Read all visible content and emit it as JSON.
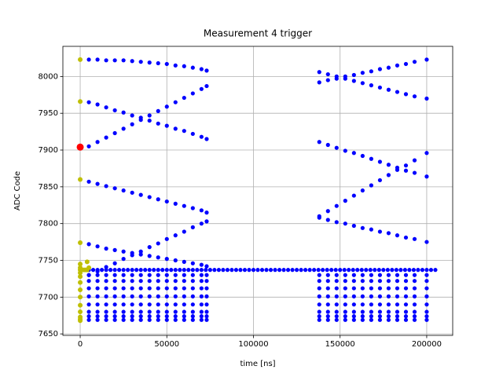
{
  "chart_data": {
    "type": "scatter",
    "title": "Measurement 4 trigger",
    "x_label": "time [ns]",
    "y_label": "ADC Code",
    "xlim": [
      -10000,
      215000
    ],
    "ylim": [
      7648,
      8041
    ],
    "xticks": [
      0,
      50000,
      100000,
      150000,
      200000
    ],
    "yticks": [
      7650,
      7700,
      7750,
      7800,
      7850,
      7900,
      7950,
      8000
    ],
    "grid": true,
    "x": [
      5000,
      10000,
      15000,
      20000,
      25000,
      30000,
      35000,
      40000,
      45000,
      50000,
      55000,
      60000,
      65000,
      70000,
      73000,
      138000,
      143000,
      148000,
      153000,
      158000,
      163000,
      168000,
      173000,
      178000,
      183000,
      188000,
      193000,
      200000
    ],
    "series": [
      {
        "color": "#0000ff",
        "values": [
          8023,
          8023,
          8022,
          8022,
          8022,
          8021,
          8020,
          8019,
          8018,
          8017,
          8015,
          8014,
          8012,
          8010,
          8008,
          null,
          null,
          null,
          null,
          null,
          null,
          null,
          null,
          null,
          null,
          null,
          null,
          null
        ]
      },
      {
        "color": "#0000ff",
        "values": [
          7965,
          7962,
          7958,
          7954,
          7951,
          7947,
          7944,
          7940,
          7936,
          7933,
          7929,
          7926,
          7922,
          7918,
          7915,
          null,
          null,
          null,
          null,
          null,
          null,
          null,
          null,
          null,
          null,
          null,
          null,
          null
        ]
      },
      {
        "color": "#0000ff",
        "values": [
          7905,
          7911,
          7917,
          7923,
          7929,
          7935,
          7941,
          7947,
          7953,
          7959,
          7965,
          7971,
          7977,
          7983,
          7987,
          null,
          null,
          null,
          null,
          null,
          null,
          null,
          null,
          null,
          null,
          null,
          null,
          null
        ]
      },
      {
        "color": "#0000ff",
        "values": [
          7857,
          7854,
          7851,
          7848,
          7845,
          7842,
          7839,
          7836,
          7833,
          7830,
          7827,
          7824,
          7821,
          7818,
          7815,
          null,
          null,
          null,
          null,
          null,
          null,
          null,
          null,
          null,
          null,
          null,
          null,
          null
        ]
      },
      {
        "color": "#0000ff",
        "values": [
          7772,
          7769,
          7766,
          7764,
          7762,
          7760,
          7758,
          7756,
          7754,
          7752,
          7750,
          7748,
          7746,
          7744,
          7742,
          null,
          null,
          null,
          null,
          null,
          null,
          null,
          null,
          null,
          null,
          null,
          null,
          null
        ]
      },
      {
        "color": "#0000ff",
        "values": [
          7730,
          7735,
          7741,
          7746,
          7752,
          7757,
          7762,
          7768,
          7773,
          7779,
          7784,
          7789,
          7795,
          7800,
          7803,
          null,
          null,
          null,
          null,
          null,
          null,
          null,
          null,
          null,
          null,
          null,
          null,
          null
        ]
      },
      {
        "color": "#0000ff",
        "values": [
          null,
          null,
          null,
          null,
          null,
          null,
          null,
          null,
          null,
          null,
          null,
          null,
          null,
          null,
          null,
          7992,
          7995,
          7997,
          8000,
          8002,
          8005,
          8007,
          8010,
          8012,
          8015,
          8017,
          8020,
          8023
        ]
      },
      {
        "color": "#0000ff",
        "values": [
          null,
          null,
          null,
          null,
          null,
          null,
          null,
          null,
          null,
          null,
          null,
          null,
          null,
          null,
          null,
          8006,
          8003,
          8000,
          7997,
          7994,
          7991,
          7988,
          7985,
          7982,
          7979,
          7976,
          7973,
          7970
        ]
      },
      {
        "color": "#0000ff",
        "values": [
          null,
          null,
          null,
          null,
          null,
          null,
          null,
          null,
          null,
          null,
          null,
          null,
          null,
          null,
          null,
          7911,
          7907,
          7903,
          7899,
          7896,
          7892,
          7888,
          7884,
          7880,
          7876,
          7872,
          7869,
          7864
        ]
      },
      {
        "color": "#0000ff",
        "values": [
          null,
          null,
          null,
          null,
          null,
          null,
          null,
          null,
          null,
          null,
          null,
          null,
          null,
          null,
          null,
          7810,
          7817,
          7824,
          7831,
          7838,
          7845,
          7852,
          7859,
          7866,
          7873,
          7879,
          7886,
          7896
        ]
      },
      {
        "color": "#0000ff",
        "values": [
          null,
          null,
          null,
          null,
          null,
          null,
          null,
          null,
          null,
          null,
          null,
          null,
          null,
          null,
          null,
          7808,
          7805,
          7802,
          7800,
          7797,
          7794,
          7792,
          7789,
          7787,
          7784,
          7781,
          7779,
          7775
        ]
      },
      {
        "color": "#0000ff",
        "values": [
          7730,
          7730,
          7730,
          7730,
          7730,
          7730,
          7730,
          7730,
          7730,
          7730,
          7730,
          7730,
          7730,
          7730,
          7730,
          7730,
          7730,
          7730,
          7730,
          7730,
          7730,
          7730,
          7730,
          7730,
          7730,
          7730,
          7730,
          7730
        ]
      },
      {
        "color": "#0000ff",
        "values": [
          7722,
          7722,
          7722,
          7722,
          7722,
          7722,
          7722,
          7722,
          7722,
          7722,
          7722,
          7722,
          7722,
          7722,
          7722,
          7722,
          7722,
          7722,
          7722,
          7722,
          7722,
          7722,
          7722,
          7722,
          7722,
          7722,
          7722,
          7722
        ]
      },
      {
        "color": "#0000ff",
        "values": [
          7712,
          7712,
          7712,
          7712,
          7712,
          7712,
          7712,
          7712,
          7712,
          7712,
          7712,
          7712,
          7712,
          7712,
          7712,
          7712,
          7712,
          7712,
          7712,
          7712,
          7712,
          7712,
          7712,
          7712,
          7712,
          7712,
          7712,
          7712
        ]
      },
      {
        "color": "#0000ff",
        "values": [
          7701,
          7701,
          7701,
          7701,
          7701,
          7701,
          7701,
          7701,
          7701,
          7701,
          7701,
          7701,
          7701,
          7701,
          7701,
          7701,
          7701,
          7701,
          7701,
          7701,
          7701,
          7701,
          7701,
          7701,
          7701,
          7701,
          7701,
          7701
        ]
      },
      {
        "color": "#0000ff",
        "values": [
          7690,
          7690,
          7690,
          7690,
          7690,
          7690,
          7690,
          7690,
          7690,
          7690,
          7690,
          7690,
          7690,
          7690,
          7690,
          7690,
          7690,
          7690,
          7690,
          7690,
          7690,
          7690,
          7690,
          7690,
          7690,
          7690,
          7690,
          7690
        ]
      },
      {
        "color": "#0000ff",
        "values": [
          7680,
          7680,
          7680,
          7680,
          7680,
          7680,
          7680,
          7680,
          7680,
          7680,
          7680,
          7680,
          7680,
          7680,
          7680,
          7680,
          7680,
          7680,
          7680,
          7680,
          7680,
          7680,
          7680,
          7680,
          7680,
          7680,
          7680,
          7680
        ]
      },
      {
        "color": "#0000ff",
        "values": [
          7674,
          7674,
          7674,
          7674,
          7674,
          7674,
          7674,
          7674,
          7674,
          7674,
          7674,
          7674,
          7674,
          7674,
          7674,
          7674,
          7674,
          7674,
          7674,
          7674,
          7674,
          7674,
          7674,
          7674,
          7674,
          7674,
          7674,
          7674
        ]
      },
      {
        "color": "#0000ff",
        "values": [
          7669,
          7669,
          7669,
          7669,
          7669,
          7669,
          7669,
          7669,
          7669,
          7669,
          7669,
          7669,
          7669,
          7669,
          7669,
          7669,
          7669,
          7669,
          7669,
          7669,
          7669,
          7669,
          7669,
          7669,
          7669,
          7669,
          7669,
          7669
        ]
      },
      {
        "color": "#0000ff",
        "x": [
          0,
          2500,
          5000,
          7500,
          10000,
          12500,
          15000,
          17500,
          20000,
          22500,
          25000,
          27500,
          30000,
          32500,
          35000,
          37500,
          40000,
          42500,
          45000,
          47500,
          50000,
          52500,
          55000,
          57500,
          60000,
          62500,
          65000,
          67500,
          70000,
          72500,
          75000,
          77500,
          80000,
          82500,
          85000,
          87500,
          90000,
          92500,
          95000,
          97500,
          100000,
          102500,
          105000,
          107500,
          110000,
          112500,
          115000,
          117500,
          120000,
          122500,
          125000,
          127500,
          130000,
          132500,
          135000,
          137500,
          140000,
          142500,
          145000,
          147500,
          150000,
          152500,
          155000,
          157500,
          160000,
          162500,
          165000,
          167500,
          170000,
          172500,
          175000,
          177500,
          180000,
          182500,
          185000,
          187500,
          190000,
          192500,
          195000,
          197500,
          200000,
          202500,
          205000
        ],
        "values": [
          7737,
          7737,
          7737,
          7737,
          7737,
          7737,
          7737,
          7737,
          7737,
          7737,
          7737,
          7737,
          7737,
          7737,
          7737,
          7737,
          7737,
          7737,
          7737,
          7737,
          7737,
          7737,
          7737,
          7737,
          7737,
          7737,
          7737,
          7737,
          7737,
          7737,
          7737,
          7737,
          7737,
          7737,
          7737,
          7737,
          7737,
          7737,
          7737,
          7737,
          7737,
          7737,
          7737,
          7737,
          7737,
          7737,
          7737,
          7737,
          7737,
          7737,
          7737,
          7737,
          7737,
          7737,
          7737,
          7737,
          7737,
          7737,
          7737,
          7737,
          7737,
          7737,
          7737,
          7737,
          7737,
          7737,
          7737,
          7737,
          7737,
          7737,
          7737,
          7737,
          7737,
          7737,
          7737,
          7737,
          7737,
          7737,
          7737,
          7737,
          7737,
          7737,
          7737
        ]
      },
      {
        "color": "#bfbf00",
        "x": [
          0,
          0,
          0,
          0,
          0,
          0,
          0,
          0,
          0,
          0,
          0,
          0,
          0,
          0,
          0,
          0,
          0,
          2000,
          3000,
          4000,
          5000,
          4000
        ],
        "values": [
          8023,
          7966,
          7860,
          7774,
          7745,
          7740,
          7737,
          7733,
          7728,
          7720,
          7710,
          7700,
          7689,
          7680,
          7673,
          7670,
          7668,
          7737,
          7737,
          7737,
          7740,
          7748
        ]
      },
      {
        "color": "#ff0000",
        "x": [
          0
        ],
        "values": [
          7904
        ]
      }
    ]
  }
}
